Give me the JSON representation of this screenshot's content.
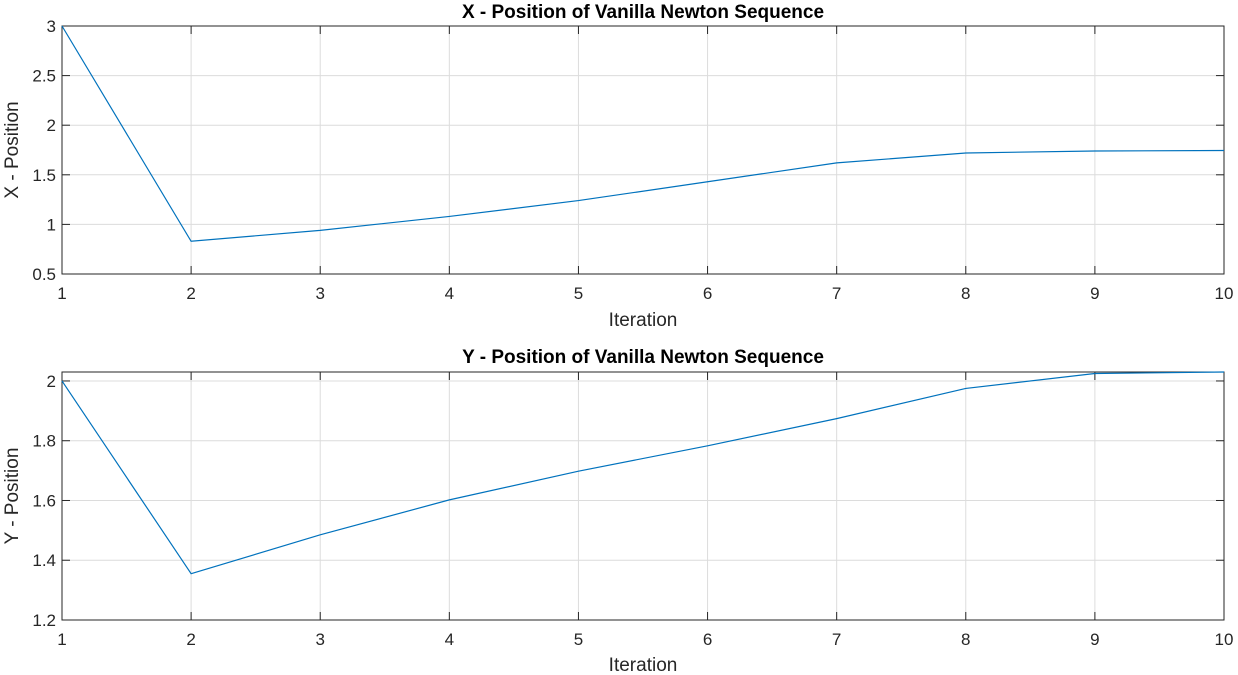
{
  "chart_data": [
    {
      "type": "line",
      "title": "X - Position of Vanilla Newton Sequence",
      "xlabel": "Iteration",
      "ylabel": "X - Position",
      "xlim": [
        1,
        10
      ],
      "ylim": [
        0.5,
        3
      ],
      "xticks": [
        "1",
        "2",
        "3",
        "4",
        "5",
        "6",
        "7",
        "8",
        "9",
        "10"
      ],
      "yticks": [
        "0.5",
        "1",
        "1.5",
        "2",
        "2.5",
        "3"
      ],
      "grid": true,
      "series": [
        {
          "color": "#0072BD",
          "x": [
            1,
            2,
            3,
            4,
            5,
            6,
            7,
            8,
            9,
            10
          ],
          "y": [
            3.0,
            0.83,
            0.94,
            1.08,
            1.24,
            1.43,
            1.62,
            1.72,
            1.74,
            1.745
          ]
        }
      ]
    },
    {
      "type": "line",
      "title": "Y - Position of Vanilla Newton Sequence",
      "xlabel": "Iteration",
      "ylabel": "Y - Position",
      "xlim": [
        1,
        10
      ],
      "ylim": [
        1.2,
        2.03
      ],
      "xticks": [
        "1",
        "2",
        "3",
        "4",
        "5",
        "6",
        "7",
        "8",
        "9",
        "10"
      ],
      "yticks": [
        "1.2",
        "1.4",
        "1.6",
        "1.8",
        "2"
      ],
      "grid": true,
      "series": [
        {
          "color": "#0072BD",
          "x": [
            1,
            2,
            3,
            4,
            5,
            6,
            7,
            8,
            9,
            10
          ],
          "y": [
            2.0,
            1.355,
            1.485,
            1.602,
            1.698,
            1.783,
            1.874,
            1.975,
            2.025,
            2.03
          ]
        }
      ]
    }
  ]
}
